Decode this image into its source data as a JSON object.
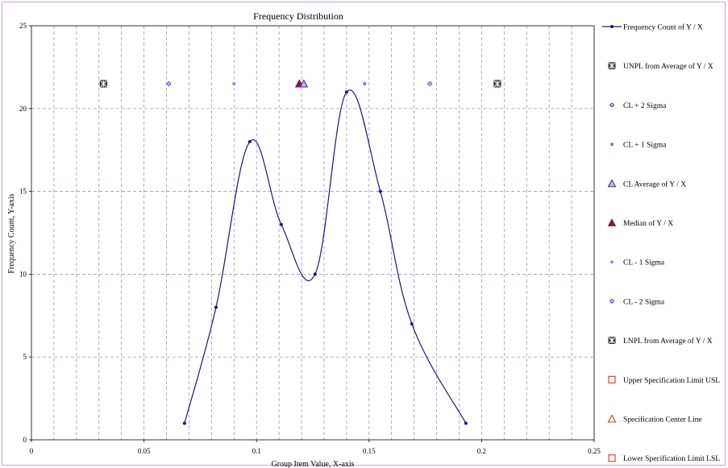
{
  "chart_data": {
    "type": "line",
    "title": "Frequency Distribution",
    "xlabel": "Group Item Value, X-axis",
    "ylabel": "Frequency Count, Y-axis",
    "xlim": [
      0,
      0.25
    ],
    "ylim": [
      0,
      25
    ],
    "x_ticks": [
      "0",
      "0.05",
      "0.1",
      "0.15",
      "0.2",
      "0.25"
    ],
    "y_ticks": [
      "0",
      "5",
      "10",
      "15",
      "20",
      "25"
    ],
    "grid": true,
    "legend_position": "right",
    "series": [
      {
        "name": "Frequency Count of Y / X",
        "marker": "dot",
        "color": "#1a1a6e",
        "x": [
          0.068,
          0.082,
          0.097,
          0.111,
          0.126,
          0.14,
          0.155,
          0.169,
          0.193
        ],
        "y": [
          1,
          8,
          18,
          13,
          10,
          21,
          15,
          7,
          1
        ]
      },
      {
        "name": "UNPL from Average of Y / X",
        "marker": "x-box",
        "color": "#000000",
        "x": [
          0.207
        ],
        "y": [
          21.5
        ]
      },
      {
        "name": "CL + 2 Sigma",
        "marker": "x-small",
        "color": "#5a2a8a",
        "x": [
          0.177
        ],
        "y": [
          21.5
        ]
      },
      {
        "name": "CL + 1 Sigma",
        "marker": "dot-small",
        "color": "#9966cc",
        "x": [
          0.148
        ],
        "y": [
          21.5
        ]
      },
      {
        "name": "CL Average of Y / X",
        "marker": "triangle-open",
        "color": "#3a2a8a",
        "x": [
          0.121
        ],
        "y": [
          21.5
        ]
      },
      {
        "name": "Median of Y / X",
        "marker": "triangle-filled",
        "color": "#7a1a4a",
        "x": [
          0.119
        ],
        "y": [
          21.5
        ]
      },
      {
        "name": "CL - 1 Sigma",
        "marker": "dot-small",
        "color": "#8888ff",
        "x": [
          0.09
        ],
        "y": [
          21.5
        ]
      },
      {
        "name": "CL - 2 Sigma",
        "marker": "x-small",
        "color": "#3333ff",
        "x": [
          0.061
        ],
        "y": [
          21.5
        ]
      },
      {
        "name": "LNPL from Average of Y / X",
        "marker": "x-box",
        "color": "#000000",
        "x": [
          0.032
        ],
        "y": [
          21.5
        ]
      },
      {
        "name": "Upper Specification Limit USL",
        "marker": "square-open",
        "color": "#e03030",
        "x": [
          0.207
        ],
        "y": [
          21.5
        ]
      },
      {
        "name": "Specification Center Line",
        "marker": "triangle-red",
        "color": "#e03030",
        "x": [
          0.119
        ],
        "y": [
          21.5
        ]
      },
      {
        "name": "Lower Specification Limit LSL",
        "marker": "square-open",
        "color": "#e03030",
        "x": [
          0.032
        ],
        "y": [
          21.5
        ]
      }
    ]
  }
}
